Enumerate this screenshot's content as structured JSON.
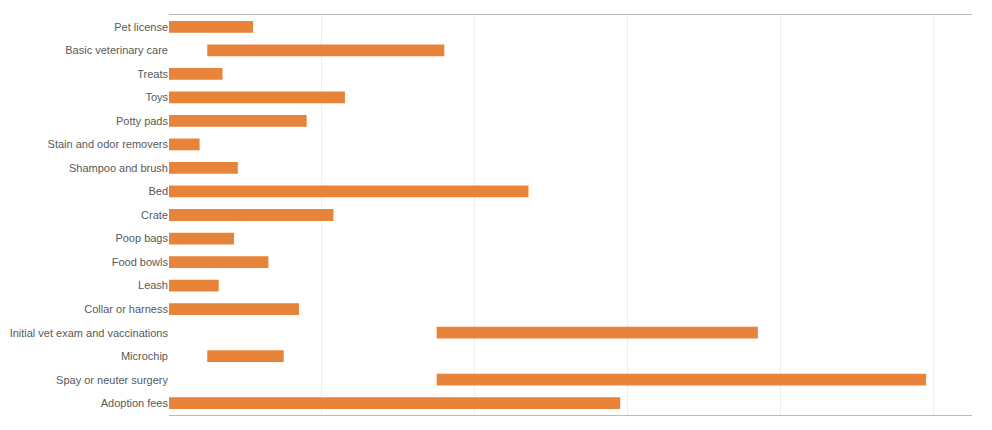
{
  "chart_data": {
    "type": "bar",
    "orientation": "horizontal",
    "categories": [
      "Pet license",
      "Basic veterinary care",
      "Treats",
      "Toys",
      "Potty pads",
      "Stain and odor removers",
      "Shampoo and brush",
      "Bed",
      "Crate",
      "Poop bags",
      "Food bowls",
      "Leash",
      "Collar or harness",
      "Initial vet exam and vaccinations",
      "Microchip",
      "Spay or neuter surgery",
      "Adoption fees"
    ],
    "starts": [
      0,
      50,
      0,
      0,
      0,
      0,
      0,
      0,
      0,
      0,
      0,
      0,
      0,
      350,
      50,
      350,
      0
    ],
    "values": [
      110,
      310,
      70,
      230,
      180,
      40,
      90,
      470,
      215,
      85,
      130,
      65,
      170,
      420,
      100,
      640,
      590
    ],
    "color": "#e8833a",
    "xlim": [
      0,
      1050
    ],
    "xticks": [
      0,
      200,
      400,
      600,
      800,
      1000
    ],
    "grid": true,
    "tick_labels": "y"
  }
}
